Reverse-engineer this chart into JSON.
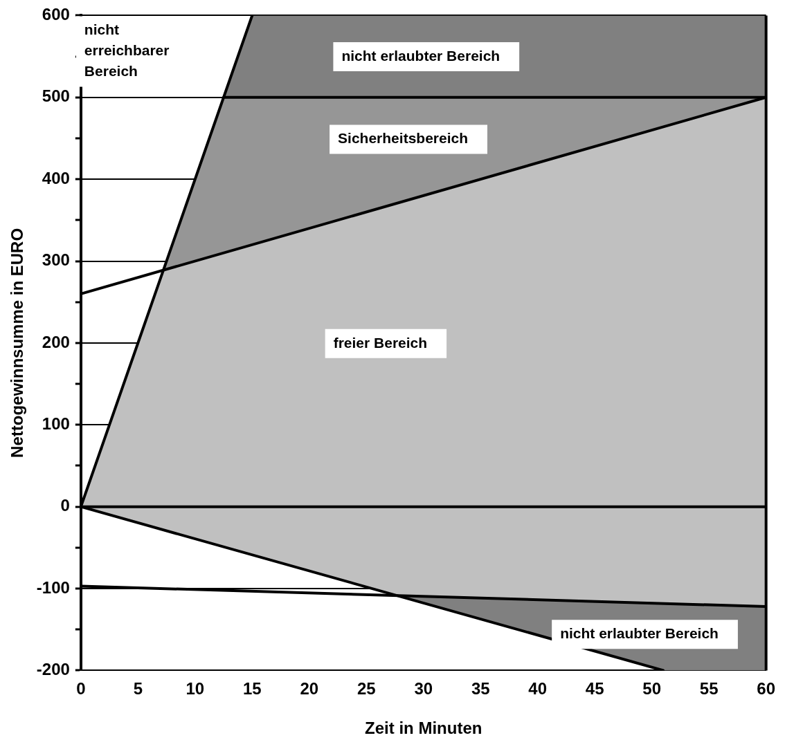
{
  "chart_data": {
    "type": "line",
    "xlabel": "Zeit in Minuten",
    "ylabel": "Nettogewinnsumme in EURO",
    "xlim": [
      0,
      60
    ],
    "ylim": [
      -200,
      600
    ],
    "xticks": [
      0,
      5,
      10,
      15,
      20,
      25,
      30,
      35,
      40,
      45,
      50,
      55,
      60
    ],
    "yticks": [
      -200,
      {
        "value": -150,
        "label": null
      },
      -100,
      {
        "value": -50,
        "label": null
      },
      0,
      {
        "value": 50,
        "label": null
      },
      100,
      {
        "value": 150,
        "label": null
      },
      200,
      {
        "value": 250,
        "label": null
      },
      300,
      {
        "value": 350,
        "label": null
      },
      400,
      {
        "value": 450,
        "label": null
      },
      500,
      {
        "value": 550,
        "label": null
      },
      600
    ],
    "grid": "y",
    "legend": false,
    "marker": "none",
    "series": [
      {
        "color": "#808080",
        "x": [
          12.5,
          15,
          60
        ],
        "values": [
          null,
          null,
          null
        ],
        "upper": [
          500,
          600,
          600
        ],
        "lower": [
          500,
          500,
          500
        ]
      },
      {
        "color": "#969696",
        "x": [
          7.2,
          12.5,
          60
        ],
        "values": [
          null,
          null,
          null
        ],
        "upper": [
          289,
          500,
          500
        ],
        "lower": [
          289,
          310,
          500
        ]
      },
      {
        "color": "#c0c0c0",
        "x": [
          0,
          7.2,
          27.5,
          60
        ],
        "values": [
          null,
          null,
          null,
          null
        ],
        "upper": [
          0,
          289,
          370,
          500
        ],
        "lower": [
          0,
          -28,
          -108,
          -122
        ]
      },
      {
        "color": "#808080",
        "x": [
          27.5,
          51,
          60
        ],
        "values": [
          null,
          null,
          null
        ],
        "upper": [
          -108,
          -117,
          -122
        ],
        "lower": [
          -108,
          -200,
          -200
        ]
      },
      {
        "color": "#000000",
        "x": [
          0,
          15
        ],
        "values": [
          0,
          600
        ]
      },
      {
        "color": "#000000",
        "x": [
          0,
          60
        ],
        "values": [
          260,
          500
        ]
      },
      {
        "color": "#000000",
        "x": [
          12.5,
          60
        ],
        "values": [
          500,
          500
        ]
      },
      {
        "color": "#000000",
        "x": [
          0,
          60
        ],
        "values": [
          0,
          0
        ]
      },
      {
        "color": "#000000",
        "x": [
          0,
          51
        ],
        "values": [
          0,
          -200
        ]
      },
      {
        "color": "#000000",
        "x": [
          0,
          60
        ],
        "values": [
          -97,
          -122
        ]
      }
    ],
    "ref_lines": [
      {
        "axis": "x",
        "value": 60,
        "color": "#000000"
      }
    ],
    "annotations": [
      "nicht\nerreichbarer\nBereich",
      "nicht erlaubter Bereich",
      "Sicherheitsbereich",
      "freier Bereich",
      "nicht erlaubter Bereich"
    ]
  }
}
